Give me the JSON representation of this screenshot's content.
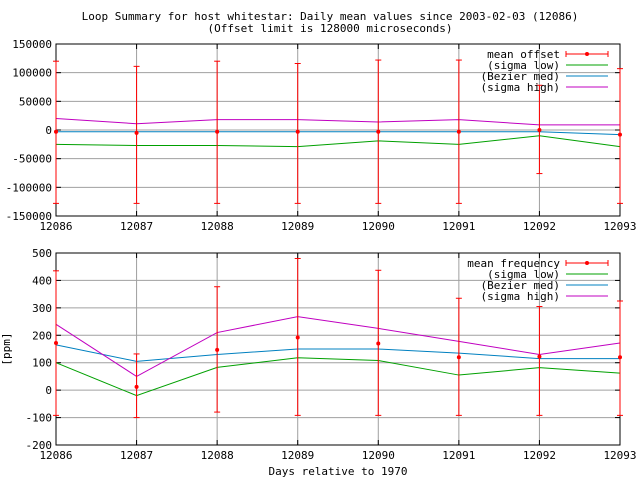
{
  "title": "Loop Summary for host whitestar: Daily mean values since 2003-02-03 (12086)",
  "subtitle": "(Offset limit is 128000 microseconds)",
  "colors": {
    "red": "#ff0000",
    "green": "#00a000",
    "blue": "#0080c0",
    "magenta": "#c000c0",
    "grid": "#a0a0a0"
  },
  "chart_data": [
    {
      "type": "line",
      "ylabel": "",
      "xlabel": "",
      "xlim": [
        12086,
        12093
      ],
      "ylim": [
        -150000,
        150000
      ],
      "x_ticks": [
        "12086",
        "12087",
        "12088",
        "12089",
        "12090",
        "12091",
        "12092",
        "12093"
      ],
      "y_ticks": [
        "150000",
        "100000",
        "50000",
        "0",
        "-50000",
        "-100000",
        "-150000"
      ],
      "y_tick_values": [
        150000,
        100000,
        50000,
        0,
        -50000,
        -100000,
        -150000
      ],
      "grid": true,
      "legend_position": "top-right",
      "x": [
        12086,
        12087,
        12088,
        12089,
        12090,
        12091,
        12092,
        12093
      ],
      "series": [
        {
          "name": "mean offset",
          "style": "errorbar",
          "color": "#ff0000",
          "values": [
            -3000,
            -5000,
            -3000,
            -3000,
            -3000,
            -3000,
            0,
            -8000
          ],
          "lower": [
            -128000,
            -128000,
            -128000,
            -128000,
            -128000,
            -128000,
            -76000,
            -128000
          ],
          "upper": [
            120000,
            111000,
            120000,
            116000,
            122000,
            122000,
            78000,
            107000
          ]
        },
        {
          "name": "(sigma low)",
          "color": "#00a000",
          "values": [
            -25000,
            -27000,
            -27000,
            -29000,
            -19000,
            -25000,
            -10000,
            -29000
          ]
        },
        {
          "name": "(Bezier med)",
          "color": "#0080c0",
          "values": [
            -3000,
            -3000,
            -3000,
            -3000,
            -3000,
            -3000,
            -3000,
            -8000
          ]
        },
        {
          "name": "(sigma high)",
          "color": "#c000c0",
          "values": [
            20000,
            11000,
            18000,
            18000,
            14000,
            18000,
            9000,
            9000
          ]
        }
      ]
    },
    {
      "type": "line",
      "ylabel": "[ppm]",
      "xlabel": "Days relative to 1970",
      "xlim": [
        12086,
        12093
      ],
      "ylim": [
        -200,
        500
      ],
      "x_ticks": [
        "12086",
        "12087",
        "12088",
        "12089",
        "12090",
        "12091",
        "12092",
        "12093"
      ],
      "y_ticks": [
        "500",
        "400",
        "300",
        "200",
        "100",
        "0",
        "-100",
        "-200"
      ],
      "y_tick_values": [
        500,
        400,
        300,
        200,
        100,
        0,
        -100,
        -200
      ],
      "grid": true,
      "legend_position": "top-right",
      "x": [
        12086,
        12087,
        12088,
        12089,
        12090,
        12091,
        12092,
        12093
      ],
      "series": [
        {
          "name": "mean frequency",
          "style": "errorbar",
          "color": "#ff0000",
          "values": [
            172,
            12,
            147,
            192,
            170,
            120,
            122,
            120
          ],
          "lower": [
            -92,
            -100,
            -80,
            -92,
            -92,
            -92,
            -92,
            -92
          ],
          "upper": [
            435,
            132,
            377,
            480,
            437,
            335,
            305,
            325
          ]
        },
        {
          "name": "(sigma low)",
          "color": "#00a000",
          "values": [
            100,
            -20,
            83,
            118,
            108,
            55,
            82,
            62
          ]
        },
        {
          "name": "(Bezier med)",
          "color": "#0080c0",
          "values": [
            165,
            105,
            130,
            150,
            150,
            135,
            115,
            115
          ]
        },
        {
          "name": "(sigma high)",
          "color": "#c000c0",
          "values": [
            240,
            50,
            210,
            268,
            225,
            178,
            130,
            172
          ]
        }
      ]
    }
  ]
}
